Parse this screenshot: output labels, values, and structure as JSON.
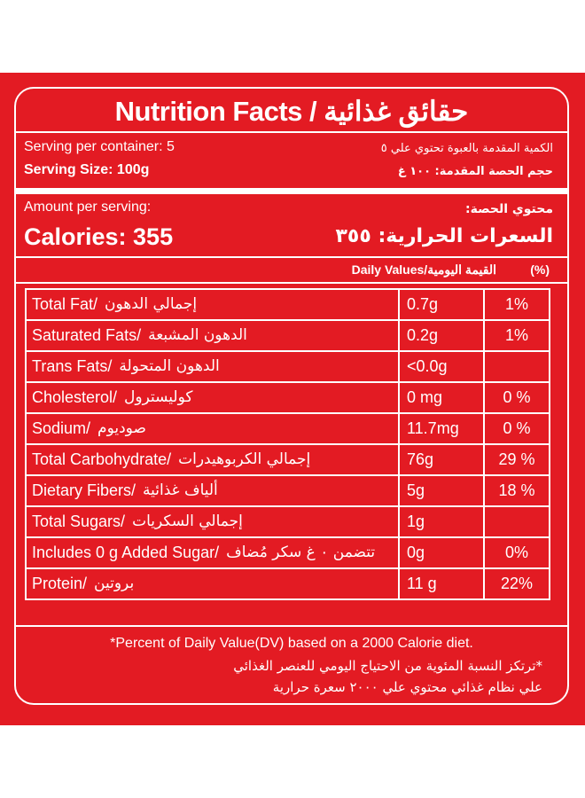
{
  "label": {
    "title": "Nutrition Facts / حقائق غذائية",
    "serving_per_container_en": "Serving per container: 5",
    "serving_per_container_ar": "الكمية المقدمة بالعبوة تحتوي علي ٥",
    "serving_size_en": "Serving Size: 100g",
    "serving_size_ar": "حجم الحصة المقدمة: ١٠٠ غ",
    "amount_per_serving_en": "Amount per serving:",
    "amount_per_serving_ar": "محتوي الحصة:",
    "calories_en": "Calories: 355",
    "calories_ar": "السعرات الحرارية: ٣٥٥",
    "daily_values": "Daily Values/القيمة اليومية",
    "percent_symbol": "(%)",
    "rows": [
      {
        "en": "Total Fat/",
        "ar": "إجمالي الدهون",
        "amount": "0.7g",
        "percent": "1%"
      },
      {
        "en": "Saturated Fats/",
        "ar": "الدهون المشبعة",
        "amount": "0.2g",
        "percent": "1%"
      },
      {
        "en": "Trans Fats/",
        "ar": "الدهون المتحولة",
        "amount": "<0.0g",
        "percent": ""
      },
      {
        "en": "Cholesterol/",
        "ar": "كوليسترول",
        "amount": "0 mg",
        "percent": "0 %"
      },
      {
        "en": "Sodium/",
        "ar": "صوديوم",
        "amount": "11.7mg",
        "percent": "0 %"
      },
      {
        "en": "Total Carbohydrate/",
        "ar": "إجمالي الكربوهيدرات",
        "amount": "76g",
        "percent": "29 %"
      },
      {
        "en": "Dietary Fibers/",
        "ar": "ألياف غذائية",
        "amount": "5g",
        "percent": "18 %"
      },
      {
        "en": "Total Sugars/",
        "ar": "إجمالي السكريات",
        "amount": "1g",
        "percent": ""
      },
      {
        "en": "Includes 0 g Added Sugar/",
        "ar": "تتضمن ٠ غ سكر مُضاف",
        "amount": "0g",
        "percent": "0%"
      },
      {
        "en": "Protein/",
        "ar": "بروتين",
        "amount": "11 g",
        "percent": "22%"
      }
    ],
    "footnote_en": "*Percent of Daily Value(DV) based on a 2000 Calorie diet.",
    "footnote_ar_1": "*ترتكز النسبة المئوية من الاحتياج اليومي للعنصر الغذائي",
    "footnote_ar_2": "علي نظام غذائي محتوي علي ٢٠٠٠ سعرة حرارية"
  },
  "colors": {
    "background": "#e31b23",
    "foreground": "#ffffff"
  }
}
